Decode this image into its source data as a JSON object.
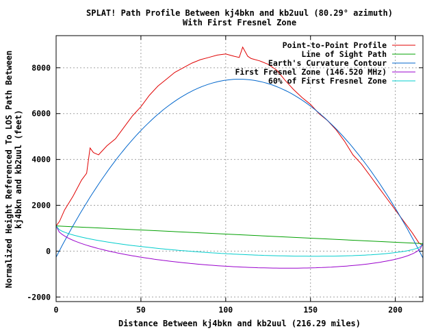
{
  "chart_data": {
    "type": "line",
    "title": "SPLAT! Path Profile Between kj4bkn and kb2uul (80.29° azimuth)",
    "subtitle": "With First Fresnel Zone",
    "xlabel": "Distance Between kj4bkn and kb2uul (216.29 miles)",
    "ylabel_line1": "Normalized Height Referenced To LOS Path Between",
    "ylabel_line2": "kj4bkn and kb2uul (feet)",
    "xlim": [
      0,
      216.29
    ],
    "ylim": [
      -2200,
      9400
    ],
    "x_ticks": [
      0,
      50,
      100,
      150,
      200
    ],
    "y_ticks": [
      -2000,
      0,
      2000,
      4000,
      6000,
      8000
    ],
    "grid": true,
    "legend_position": "top-right",
    "series": [
      {
        "name": "Point-to-Point Profile",
        "color": "#e00000",
        "x": [
          0,
          2,
          5,
          10,
          15,
          18,
          20,
          22,
          25,
          30,
          35,
          40,
          45,
          50,
          55,
          60,
          65,
          70,
          75,
          80,
          85,
          90,
          95,
          100,
          105,
          108,
          110,
          113,
          115,
          120,
          125,
          130,
          135,
          140,
          145,
          150,
          155,
          160,
          165,
          170,
          175,
          180,
          185,
          190,
          195,
          200,
          205,
          210,
          214,
          216.29
        ],
        "y": [
          1100,
          1300,
          1800,
          2400,
          3100,
          3400,
          4500,
          4300,
          4200,
          4600,
          4900,
          5400,
          5900,
          6300,
          6800,
          7200,
          7500,
          7800,
          8000,
          8200,
          8350,
          8450,
          8550,
          8600,
          8500,
          8450,
          8900,
          8500,
          8400,
          8300,
          8150,
          7900,
          7450,
          7050,
          6700,
          6400,
          6000,
          5700,
          5300,
          4800,
          4200,
          3800,
          3300,
          2800,
          2300,
          1800,
          1300,
          800,
          350,
          250
        ]
      },
      {
        "name": "Line of Sight Path",
        "color": "#00a000",
        "x": [
          0,
          216.29
        ],
        "y": [
          1100,
          330
        ]
      },
      {
        "name": "Earth's Curvature Contour",
        "color": "#0066cc",
        "curve": "parabola",
        "x": [
          0,
          108,
          216.29
        ],
        "y": [
          -300,
          7500,
          -300
        ]
      },
      {
        "name": "First Fresnel Zone (146.520 MHz)",
        "color": "#9900cc",
        "curve": "fresnel",
        "x": [
          0,
          108,
          216.29
        ],
        "y": [
          1100,
          -690,
          330
        ]
      },
      {
        "name": "60% of First Fresnel Zone",
        "color": "#00cccc",
        "curve": "fresnel",
        "x": [
          0,
          108,
          216.29
        ],
        "y": [
          1100,
          -140,
          330
        ]
      }
    ]
  }
}
